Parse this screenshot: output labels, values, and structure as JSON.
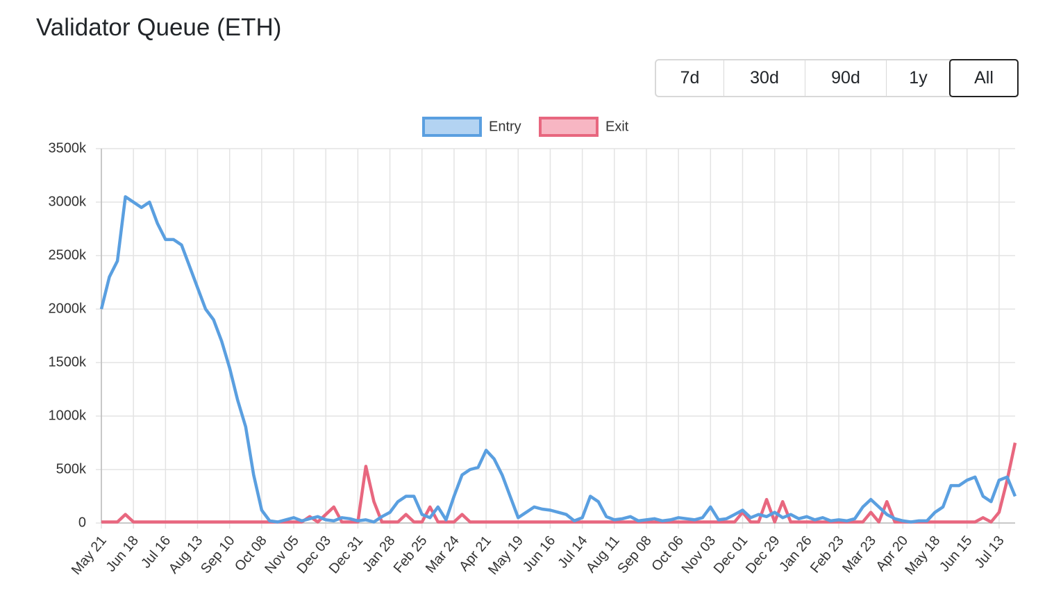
{
  "chart_data": {
    "type": "line",
    "title": "Validator Queue (ETH)",
    "range_buttons": [
      "7d",
      "30d",
      "90d",
      "1y",
      "All"
    ],
    "selected_range": 4,
    "categories": [
      "May 21",
      null,
      null,
      null,
      "Jun 18",
      null,
      null,
      null,
      "Jul 16",
      null,
      null,
      null,
      "Aug 13",
      null,
      null,
      null,
      "Sep 10",
      null,
      null,
      null,
      "Oct 08",
      null,
      null,
      null,
      "Nov 05",
      null,
      null,
      null,
      "Dec 03",
      null,
      null,
      null,
      "Dec 31",
      null,
      null,
      null,
      "Jan 28",
      null,
      null,
      null,
      "Feb 25",
      null,
      null,
      null,
      "Mar 24",
      null,
      null,
      null,
      "Apr 21",
      null,
      null,
      null,
      "May 19",
      null,
      null,
      null,
      "Jun 16",
      null,
      null,
      null,
      "Jul 14",
      null,
      null,
      null,
      "Aug 11",
      null,
      null,
      null,
      "Sep 08",
      null,
      null,
      null,
      "Oct 06",
      null,
      null,
      null,
      "Nov 03",
      null,
      null,
      null,
      "Dec 01",
      null,
      null,
      null,
      "Dec 29",
      null,
      null,
      null,
      "Jan 26",
      null,
      null,
      null,
      "Feb 23",
      null,
      null,
      null,
      "Mar 23",
      null,
      null,
      null,
      "Apr 20",
      null,
      null,
      null,
      "May 18",
      null,
      null,
      null,
      "Jun 15",
      null,
      null,
      null,
      "Jul 13",
      null,
      null
    ],
    "series": [
      {
        "name": "Entry",
        "color": "#5a9fe0",
        "fill": "#b3d3f2",
        "values": [
          2000,
          2300,
          2450,
          3050,
          3000,
          2950,
          3000,
          2800,
          2650,
          2650,
          2600,
          2400,
          2200,
          2000,
          1900,
          1700,
          1450,
          1150,
          900,
          450,
          120,
          20,
          10,
          30,
          50,
          20,
          40,
          60,
          30,
          20,
          50,
          40,
          20,
          30,
          10,
          60,
          100,
          200,
          250,
          250,
          80,
          50,
          150,
          30,
          250,
          450,
          500,
          520,
          680,
          600,
          450,
          250,
          50,
          100,
          150,
          130,
          120,
          100,
          80,
          20,
          50,
          250,
          200,
          60,
          30,
          40,
          60,
          20,
          30,
          40,
          20,
          30,
          50,
          40,
          30,
          50,
          150,
          30,
          40,
          80,
          120,
          50,
          80,
          60,
          100,
          50,
          80,
          40,
          60,
          30,
          50,
          20,
          30,
          20,
          40,
          150,
          220,
          150,
          80,
          40,
          20,
          10,
          20,
          20,
          100,
          150,
          350,
          350,
          400,
          430,
          250,
          200,
          400,
          430,
          250
        ]
      },
      {
        "name": "Exit",
        "color": "#e8677f",
        "fill": "#f7b6c3",
        "values": [
          10,
          10,
          10,
          80,
          10,
          10,
          10,
          10,
          10,
          10,
          10,
          10,
          10,
          10,
          10,
          10,
          10,
          10,
          10,
          10,
          10,
          10,
          10,
          10,
          10,
          10,
          60,
          10,
          80,
          150,
          10,
          10,
          10,
          530,
          200,
          10,
          10,
          10,
          80,
          10,
          10,
          150,
          10,
          10,
          10,
          80,
          10,
          10,
          10,
          10,
          10,
          10,
          10,
          10,
          10,
          10,
          10,
          10,
          10,
          10,
          10,
          10,
          10,
          10,
          10,
          10,
          10,
          10,
          10,
          10,
          10,
          10,
          10,
          10,
          10,
          10,
          10,
          10,
          10,
          10,
          100,
          10,
          10,
          220,
          10,
          200,
          10,
          10,
          10,
          10,
          10,
          10,
          10,
          10,
          10,
          10,
          100,
          10,
          200,
          10,
          10,
          10,
          10,
          10,
          10,
          10,
          10,
          10,
          10,
          10,
          50,
          10,
          100,
          400,
          750
        ]
      }
    ],
    "ylim": [
      0,
      3500
    ],
    "yticks": [
      {
        "value": 0,
        "label": "0"
      },
      {
        "value": 500,
        "label": "500k"
      },
      {
        "value": 1000,
        "label": "1000k"
      },
      {
        "value": 1500,
        "label": "1500k"
      },
      {
        "value": 2000,
        "label": "2000k"
      },
      {
        "value": 2500,
        "label": "2500k"
      },
      {
        "value": 3000,
        "label": "3000k"
      },
      {
        "value": 3500,
        "label": "3500k"
      }
    ],
    "grid": true,
    "legend": "top"
  }
}
